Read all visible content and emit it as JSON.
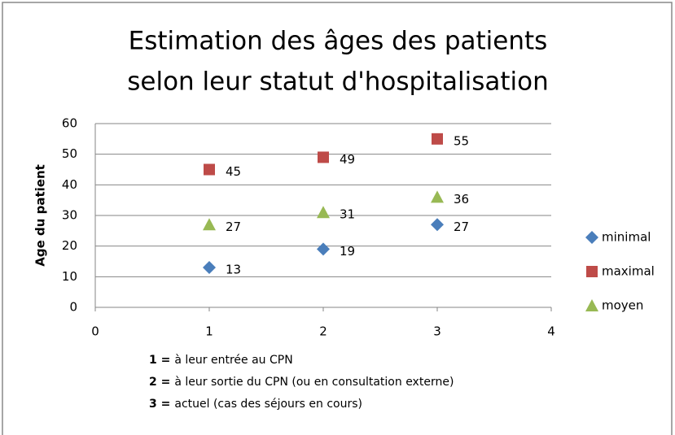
{
  "chart_data": {
    "type": "scatter",
    "title": [
      "Estimation des âges des patients",
      "selon leur statut d'hospitalisation"
    ],
    "y_label": "Age du patient",
    "x": [
      1,
      2,
      3
    ],
    "series": [
      {
        "name": "minimal",
        "color": "#4a7ebb",
        "marker": "diamond",
        "values": [
          13,
          19,
          27
        ]
      },
      {
        "name": "maximal",
        "color": "#be4b48",
        "marker": "square",
        "values": [
          45,
          49,
          55
        ]
      },
      {
        "name": "moyen",
        "color": "#98b954",
        "marker": "triangle",
        "values": [
          27,
          31,
          36
        ]
      }
    ],
    "xlim": [
      0,
      4
    ],
    "xticks": [
      0,
      1,
      2,
      3,
      4
    ],
    "ylim": [
      0,
      60
    ],
    "yticks": [
      0,
      10,
      20,
      30,
      40,
      50,
      60
    ],
    "grid": true,
    "legend": "right",
    "notes": [
      {
        "key": "1 =",
        "text": "à leur entrée au CPN"
      },
      {
        "key": "2 =",
        "text": "à leur sortie du CPN (ou en consultation externe)"
      },
      {
        "key": "3 =",
        "text": "actuel (cas des séjours en cours)"
      }
    ]
  }
}
